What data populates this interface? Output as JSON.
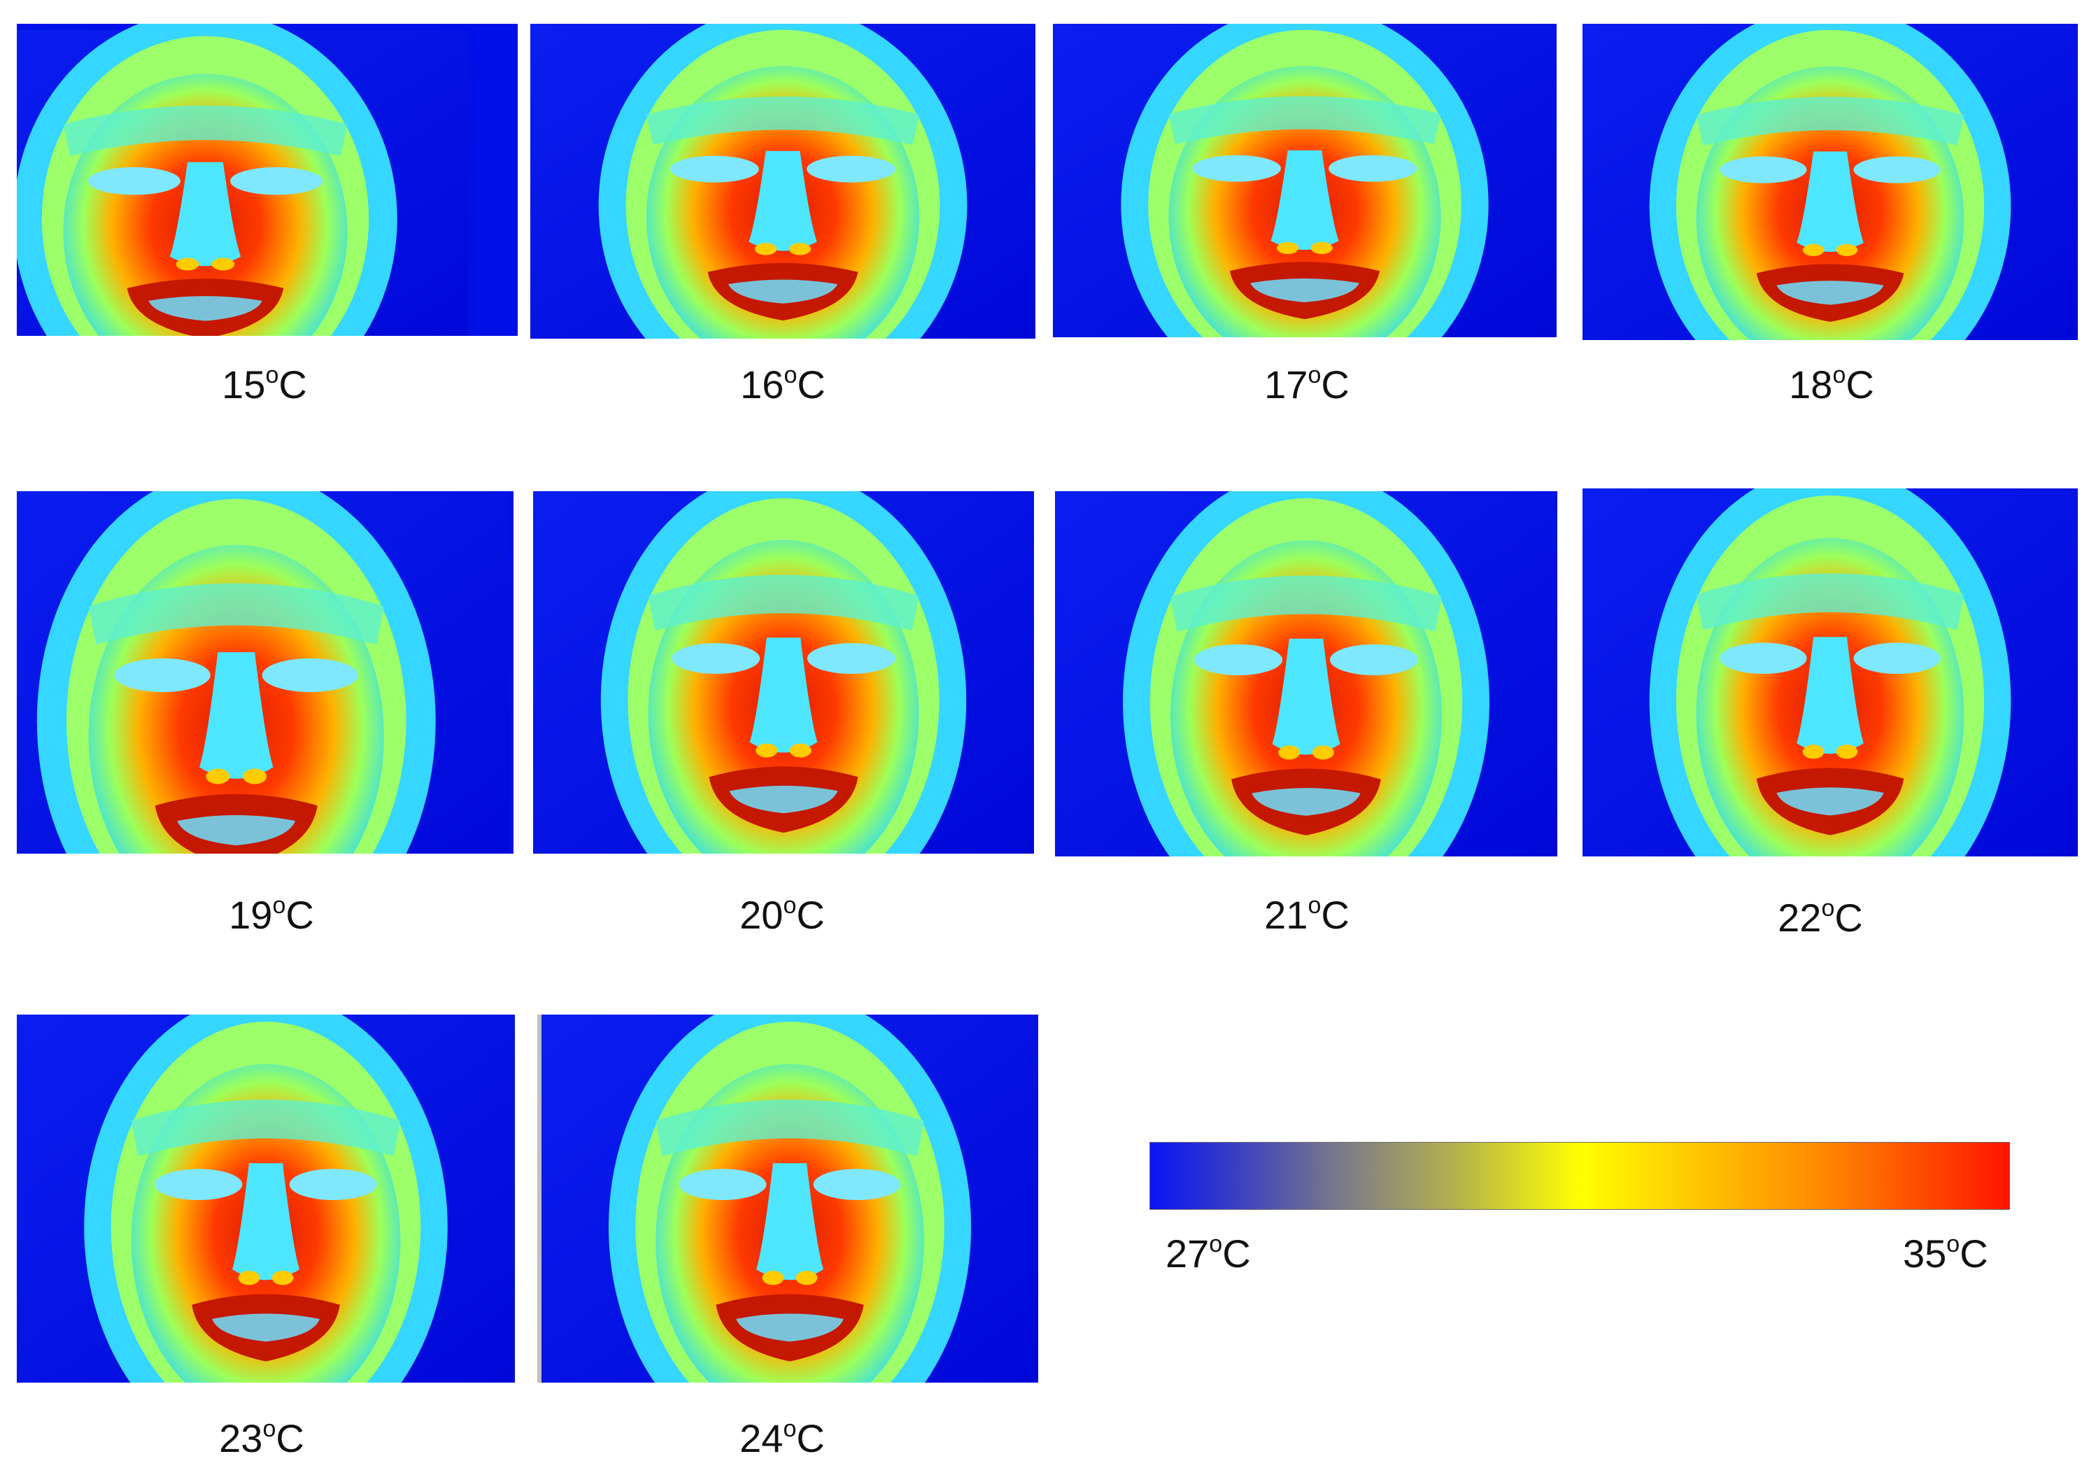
{
  "thermograms": [
    {
      "label": "15",
      "unit": "C"
    },
    {
      "label": "16",
      "unit": "C"
    },
    {
      "label": "17",
      "unit": "C"
    },
    {
      "label": "18",
      "unit": "C"
    },
    {
      "label": "19",
      "unit": "C"
    },
    {
      "label": "20",
      "unit": "C"
    },
    {
      "label": "21",
      "unit": "C"
    },
    {
      "label": "22",
      "unit": "C"
    },
    {
      "label": "23",
      "unit": "C"
    },
    {
      "label": "24",
      "unit": "C"
    }
  ],
  "degree_mark": "o",
  "colorbar": {
    "min_label": "27",
    "max_label": "35",
    "unit": "C",
    "colors": [
      "#0a14f5",
      "#7a7a8a",
      "#ffff00",
      "#ff8a00",
      "#ff1400"
    ]
  }
}
